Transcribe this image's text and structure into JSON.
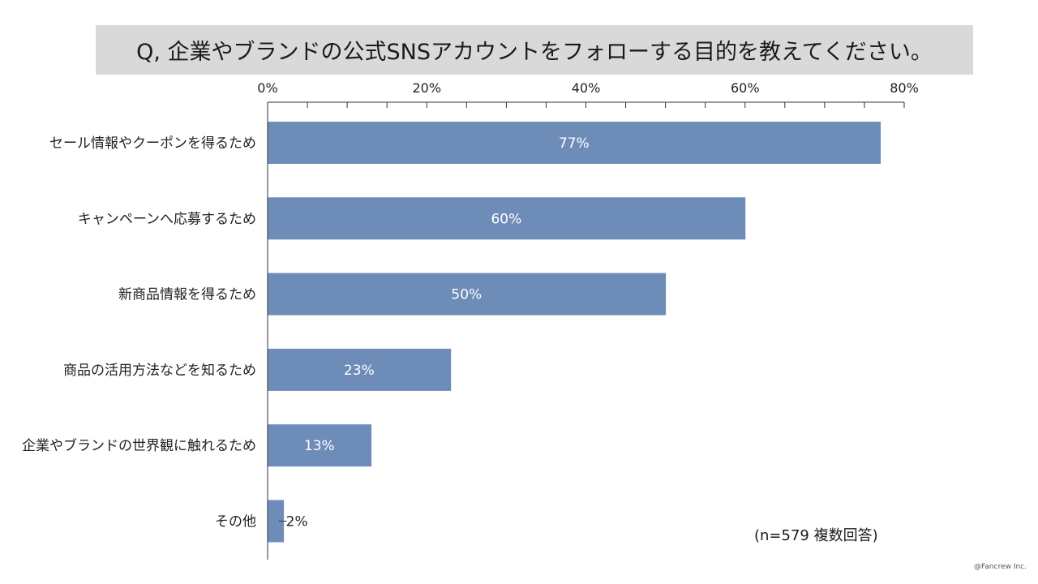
{
  "title": "Q, 企業やブランドの公式SNSアカウントをフォローする目的を教えてください。",
  "note": "(n=579 複数回答)",
  "copyright": "@Fancrew Inc.",
  "colors": {
    "bar": "#6e8cb8",
    "title_bg": "#d9d9d9",
    "axis": "#333333",
    "label_inside": "#ffffff",
    "label_outside": "#222222"
  },
  "chart_data": {
    "type": "bar",
    "orientation": "horizontal",
    "title": "Q, 企業やブランドの公式SNSアカウントをフォローする目的を教えてください。",
    "categories": [
      "セール情報やクーポンを得るため",
      "キャンペーンへ応募するため",
      "新商品情報を得るため",
      "商品の活用方法などを知るため",
      "企業やブランドの世界観に触れるため",
      "その他"
    ],
    "values": [
      77,
      60,
      50,
      23,
      13,
      2
    ],
    "data_labels": [
      "77%",
      "60%",
      "50%",
      "23%",
      "13%",
      "2%"
    ],
    "xlim": [
      0,
      80
    ],
    "x_ticks": [
      0,
      20,
      40,
      60,
      80
    ],
    "x_tick_labels": [
      "0%",
      "20%",
      "40%",
      "60%",
      "80%"
    ],
    "x_minor_step": 5,
    "x_axis_position": "top",
    "grid": false,
    "legend": "none"
  }
}
